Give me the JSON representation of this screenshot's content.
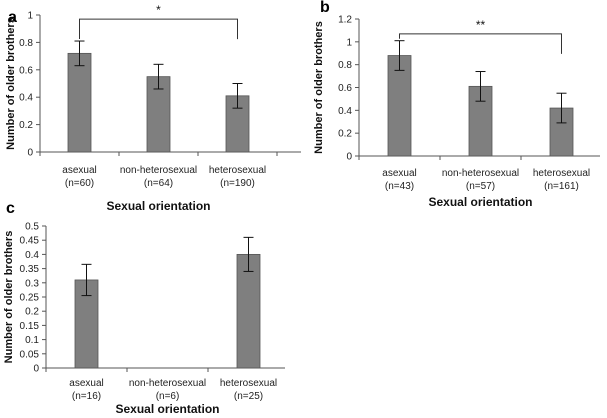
{
  "chart_data": [
    {
      "type": "bar",
      "panel_label": "a",
      "categories": [
        "asexual",
        "non-heterosexual",
        "heterosexual"
      ],
      "category_n": [
        "(n=60)",
        "(n=64)",
        "(n=190)"
      ],
      "values": [
        0.72,
        0.55,
        0.41
      ],
      "errors": [
        0.09,
        0.09,
        0.09
      ],
      "ylabel": "Number of older brothers",
      "xlabel": "Sexual orientation",
      "ylim": [
        0,
        1
      ],
      "yticks": [
        0,
        0.2,
        0.4,
        0.6,
        0.8,
        1
      ],
      "ytick_labels": [
        "0",
        "0.2",
        "0.4",
        "0.6",
        "0.8",
        "1"
      ],
      "bar_color": "#7f7f7f",
      "significance": {
        "from": 0,
        "to": 2,
        "label": "*",
        "y": 0.97
      }
    },
    {
      "type": "bar",
      "panel_label": "b",
      "categories": [
        "asexual",
        "non-heterosexual",
        "heterosexual"
      ],
      "category_n": [
        "(n=43)",
        "(n=57)",
        "(n=161)"
      ],
      "values": [
        0.88,
        0.61,
        0.42
      ],
      "errors": [
        0.13,
        0.13,
        0.13
      ],
      "ylabel": "Number of older brothers",
      "xlabel": "Sexual orientation",
      "ylim": [
        0,
        1.2
      ],
      "yticks": [
        0,
        0.2,
        0.4,
        0.6,
        0.8,
        1,
        1.2
      ],
      "ytick_labels": [
        "0",
        "0.2",
        "0.4",
        "0.6",
        "0.8",
        "1",
        "1.2"
      ],
      "bar_color": "#7f7f7f",
      "significance": {
        "from": 0,
        "to": 2,
        "label": "**",
        "y": 1.07
      }
    },
    {
      "type": "bar",
      "panel_label": "c",
      "categories": [
        "asexual",
        "non-heterosexual",
        "heterosexual"
      ],
      "category_n": [
        "(n=16)",
        "(n=6)",
        "(n=25)"
      ],
      "values": [
        0.31,
        0,
        0.4
      ],
      "errors": [
        0.055,
        0,
        0.06
      ],
      "ylabel": "Number of older brothers",
      "xlabel": "Sexual orientation",
      "ylim": [
        0,
        0.5
      ],
      "yticks": [
        0,
        0.05,
        0.1,
        0.15,
        0.2,
        0.25,
        0.3,
        0.35,
        0.4,
        0.45,
        0.5
      ],
      "ytick_labels": [
        "0",
        "0.05",
        "0.1",
        "0.15",
        "0.2",
        "0.25",
        "0.3",
        "0.35",
        "0.4",
        "0.45",
        "0.5"
      ],
      "bar_color": "#7f7f7f",
      "significance": null
    }
  ]
}
